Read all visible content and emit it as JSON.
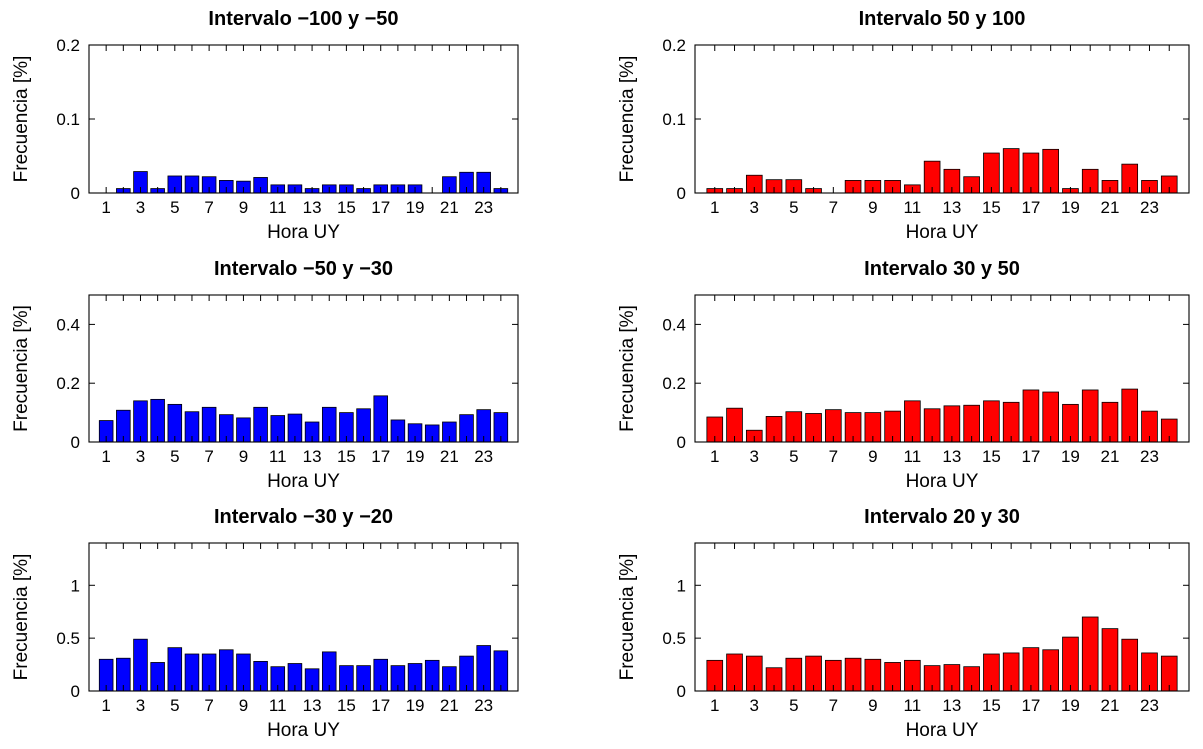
{
  "chart_data": [
    {
      "type": "bar",
      "title": "Intervalo −100 y −50",
      "xlabel": "Hora UY",
      "ylabel": "Frecuencia [%]",
      "color": "#0000ff",
      "ylim": [
        0,
        0.2
      ],
      "yticks": [
        0,
        0.1,
        0.2
      ],
      "ytick_labels": [
        "0",
        "0.1",
        "0.2"
      ],
      "categories": [
        1,
        2,
        3,
        4,
        5,
        6,
        7,
        8,
        9,
        10,
        11,
        12,
        13,
        14,
        15,
        16,
        17,
        18,
        19,
        20,
        21,
        22,
        23,
        24
      ],
      "xtick_labels": [
        "1",
        "3",
        "5",
        "7",
        "9",
        "11",
        "13",
        "15",
        "17",
        "19",
        "21",
        "23"
      ],
      "values": [
        0,
        0.006,
        0.029,
        0.006,
        0.023,
        0.023,
        0.022,
        0.017,
        0.016,
        0.021,
        0.011,
        0.011,
        0.006,
        0.011,
        0.011,
        0.006,
        0.011,
        0.011,
        0.011,
        0,
        0.022,
        0.028,
        0.028,
        0.006
      ]
    },
    {
      "type": "bar",
      "title": "Intervalo 50 y 100",
      "xlabel": "Hora UY",
      "ylabel": "Frecuencia [%]",
      "color": "#ff0000",
      "ylim": [
        0,
        0.2
      ],
      "yticks": [
        0,
        0.1,
        0.2
      ],
      "ytick_labels": [
        "0",
        "0.1",
        "0.2"
      ],
      "categories": [
        1,
        2,
        3,
        4,
        5,
        6,
        7,
        8,
        9,
        10,
        11,
        12,
        13,
        14,
        15,
        16,
        17,
        18,
        19,
        20,
        21,
        22,
        23,
        24
      ],
      "xtick_labels": [
        "1",
        "3",
        "5",
        "7",
        "9",
        "11",
        "13",
        "15",
        "17",
        "19",
        "21",
        "23"
      ],
      "values": [
        0.006,
        0.006,
        0.024,
        0.018,
        0.018,
        0.006,
        0,
        0.017,
        0.017,
        0.017,
        0.011,
        0.043,
        0.032,
        0.022,
        0.054,
        0.06,
        0.054,
        0.059,
        0.006,
        0.032,
        0.017,
        0.039,
        0.017,
        0.023
      ]
    },
    {
      "type": "bar",
      "title": "Intervalo −50 y −30",
      "xlabel": "Hora UY",
      "ylabel": "Frecuencia [%]",
      "color": "#0000ff",
      "ylim": [
        0,
        0.5
      ],
      "yticks": [
        0,
        0.2,
        0.4
      ],
      "ytick_labels": [
        "0",
        "0.2",
        "0.4"
      ],
      "categories": [
        1,
        2,
        3,
        4,
        5,
        6,
        7,
        8,
        9,
        10,
        11,
        12,
        13,
        14,
        15,
        16,
        17,
        18,
        19,
        20,
        21,
        22,
        23,
        24
      ],
      "xtick_labels": [
        "1",
        "3",
        "5",
        "7",
        "9",
        "11",
        "13",
        "15",
        "17",
        "19",
        "21",
        "23"
      ],
      "values": [
        0.073,
        0.108,
        0.14,
        0.145,
        0.128,
        0.103,
        0.118,
        0.093,
        0.082,
        0.118,
        0.09,
        0.095,
        0.068,
        0.118,
        0.1,
        0.113,
        0.157,
        0.075,
        0.062,
        0.058,
        0.068,
        0.093,
        0.11,
        0.1
      ]
    },
    {
      "type": "bar",
      "title": "Intervalo 30 y 50",
      "xlabel": "Hora UY",
      "ylabel": "Frecuencia [%]",
      "color": "#ff0000",
      "ylim": [
        0,
        0.5
      ],
      "yticks": [
        0,
        0.2,
        0.4
      ],
      "ytick_labels": [
        "0",
        "0.2",
        "0.4"
      ],
      "categories": [
        1,
        2,
        3,
        4,
        5,
        6,
        7,
        8,
        9,
        10,
        11,
        12,
        13,
        14,
        15,
        16,
        17,
        18,
        19,
        20,
        21,
        22,
        23,
        24
      ],
      "xtick_labels": [
        "1",
        "3",
        "5",
        "7",
        "9",
        "11",
        "13",
        "15",
        "17",
        "19",
        "21",
        "23"
      ],
      "values": [
        0.085,
        0.115,
        0.04,
        0.087,
        0.103,
        0.097,
        0.11,
        0.1,
        0.1,
        0.105,
        0.14,
        0.113,
        0.123,
        0.125,
        0.14,
        0.135,
        0.177,
        0.17,
        0.128,
        0.177,
        0.135,
        0.18,
        0.105,
        0.078
      ]
    },
    {
      "type": "bar",
      "title": "Intervalo −30 y −20",
      "xlabel": "Hora UY",
      "ylabel": "Frecuencia [%]",
      "color": "#0000ff",
      "ylim": [
        0,
        1.4
      ],
      "yticks": [
        0,
        0.5,
        1
      ],
      "ytick_labels": [
        "0",
        "0.5",
        "1"
      ],
      "categories": [
        1,
        2,
        3,
        4,
        5,
        6,
        7,
        8,
        9,
        10,
        11,
        12,
        13,
        14,
        15,
        16,
        17,
        18,
        19,
        20,
        21,
        22,
        23,
        24
      ],
      "xtick_labels": [
        "1",
        "3",
        "5",
        "7",
        "9",
        "11",
        "13",
        "15",
        "17",
        "19",
        "21",
        "23"
      ],
      "values": [
        0.3,
        0.31,
        0.49,
        0.27,
        0.41,
        0.35,
        0.35,
        0.39,
        0.35,
        0.28,
        0.23,
        0.26,
        0.21,
        0.37,
        0.24,
        0.24,
        0.3,
        0.24,
        0.26,
        0.29,
        0.23,
        0.33,
        0.43,
        0.38
      ]
    },
    {
      "type": "bar",
      "title": "Intervalo 20 y 30",
      "xlabel": "Hora UY",
      "ylabel": "Frecuencia [%]",
      "color": "#ff0000",
      "ylim": [
        0,
        1.4
      ],
      "yticks": [
        0,
        0.5,
        1
      ],
      "ytick_labels": [
        "0",
        "0.5",
        "1"
      ],
      "categories": [
        1,
        2,
        3,
        4,
        5,
        6,
        7,
        8,
        9,
        10,
        11,
        12,
        13,
        14,
        15,
        16,
        17,
        18,
        19,
        20,
        21,
        22,
        23,
        24
      ],
      "xtick_labels": [
        "1",
        "3",
        "5",
        "7",
        "9",
        "11",
        "13",
        "15",
        "17",
        "19",
        "21",
        "23"
      ],
      "values": [
        0.29,
        0.35,
        0.33,
        0.22,
        0.31,
        0.33,
        0.29,
        0.31,
        0.3,
        0.27,
        0.29,
        0.24,
        0.25,
        0.23,
        0.35,
        0.36,
        0.41,
        0.39,
        0.51,
        0.7,
        0.59,
        0.49,
        0.36,
        0.33
      ]
    }
  ]
}
